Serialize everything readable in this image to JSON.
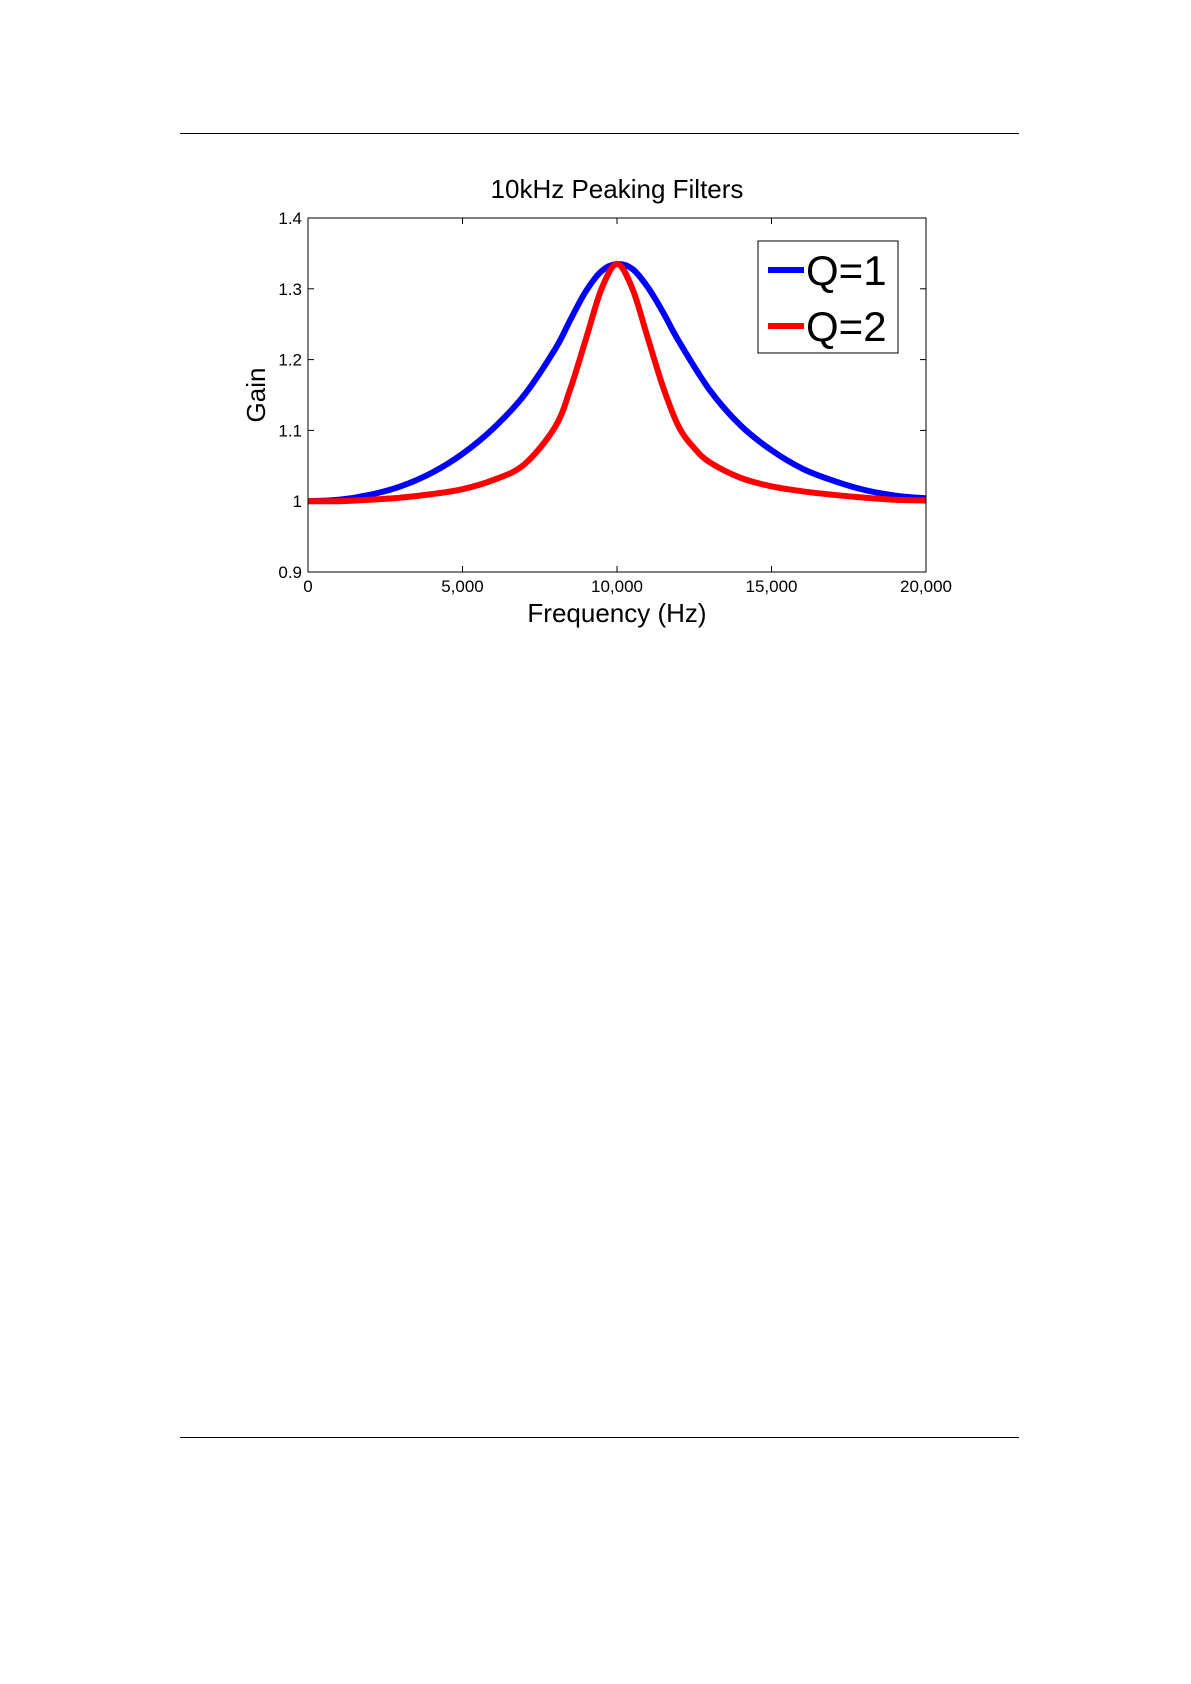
{
  "chart_data": {
    "type": "line",
    "title": "10kHz Peaking Filters",
    "xlabel": "Frequency (Hz)",
    "ylabel": "Gain",
    "xlim": [
      0,
      20000
    ],
    "ylim": [
      0.9,
      1.4
    ],
    "x_ticks": [
      0,
      5000,
      10000,
      15000,
      20000
    ],
    "x_tick_labels": [
      "0",
      "5,000",
      "10,000",
      "15,000",
      "20,000"
    ],
    "y_ticks": [
      0.9,
      1.0,
      1.1,
      1.2,
      1.3,
      1.4
    ],
    "y_tick_labels": [
      "0.9",
      "1",
      "1.1",
      "1.2",
      "1.3",
      "1.4"
    ],
    "grid": false,
    "legend_position": "top-right",
    "series": [
      {
        "name": "Q=1",
        "color": "#0000ff",
        "x": [
          0,
          1000,
          2000,
          3000,
          4000,
          5000,
          6000,
          7000,
          8000,
          8500,
          9000,
          9500,
          10000,
          10500,
          11000,
          11500,
          12000,
          13000,
          14000,
          15000,
          16000,
          17000,
          18000,
          19000,
          20000
        ],
        "y": [
          1.0,
          1.002,
          1.009,
          1.021,
          1.04,
          1.067,
          1.103,
          1.15,
          1.215,
          1.257,
          1.297,
          1.325,
          1.335,
          1.328,
          1.302,
          1.266,
          1.226,
          1.157,
          1.107,
          1.072,
          1.046,
          1.029,
          1.016,
          1.008,
          1.004
        ]
      },
      {
        "name": "Q=2",
        "color": "#ff0000",
        "x": [
          0,
          1000,
          2000,
          3000,
          4000,
          5000,
          6000,
          7000,
          8000,
          8500,
          9000,
          9500,
          10000,
          10500,
          11000,
          11500,
          12000,
          12500,
          13000,
          14000,
          15000,
          16000,
          17000,
          18000,
          19000,
          20000
        ],
        "y": [
          1.0,
          1.0,
          1.002,
          1.005,
          1.01,
          1.017,
          1.03,
          1.052,
          1.105,
          1.16,
          1.23,
          1.3,
          1.335,
          1.3,
          1.23,
          1.16,
          1.105,
          1.075,
          1.055,
          1.033,
          1.021,
          1.014,
          1.009,
          1.005,
          1.002,
          1.001
        ]
      }
    ]
  }
}
